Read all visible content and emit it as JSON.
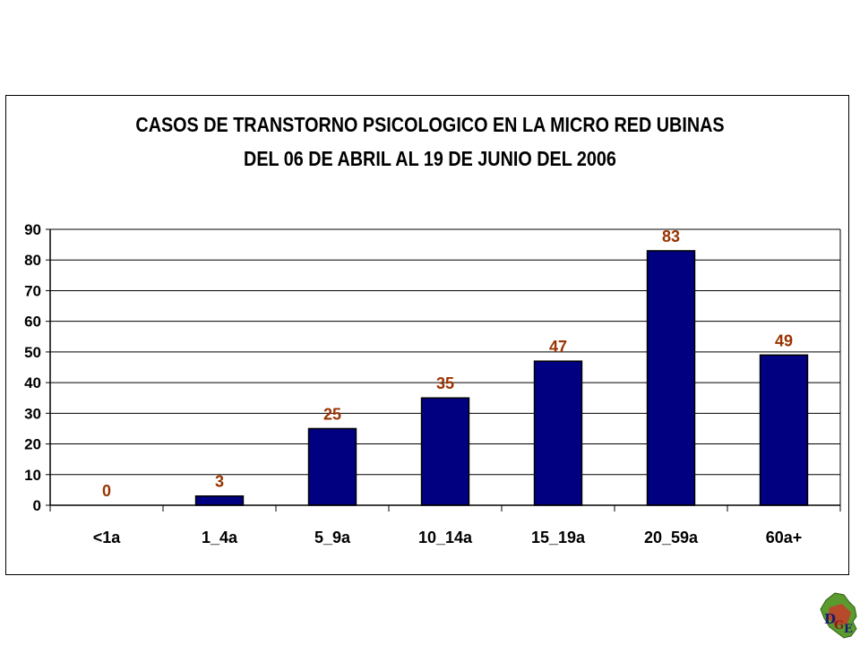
{
  "chart_data": {
    "type": "bar",
    "title": "CASOS DE TRANSTORNO PSICOLOGICO EN LA MICRO RED UBINAS",
    "subtitle": "DEL 06 DE ABRIL AL 19 DE JUNIO DEL 2006",
    "categories": [
      "<1a",
      "1_4a",
      "5_9a",
      "10_14a",
      "15_19a",
      "20_59a",
      "60a+"
    ],
    "values": [
      0,
      3,
      25,
      35,
      47,
      83,
      49
    ],
    "ylim": [
      0,
      90
    ],
    "yticks": [
      0,
      10,
      20,
      30,
      40,
      50,
      60,
      70,
      80,
      90
    ],
    "grid": true,
    "legend": "none",
    "colors": {
      "bar": "#000080",
      "data_label": "#993300",
      "axis": "#000000"
    }
  },
  "logo": {
    "text": "DGE",
    "icon": "peru-map-logo-icon"
  }
}
